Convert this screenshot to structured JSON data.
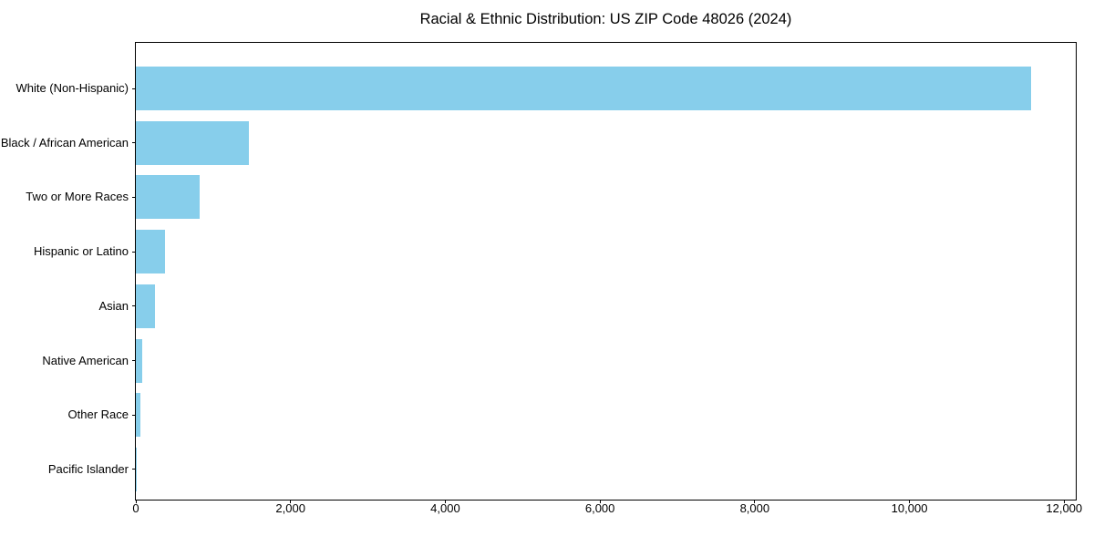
{
  "chart_data": {
    "type": "bar",
    "orientation": "horizontal",
    "title": "Racial & Ethnic Distribution: US ZIP Code 48026 (2024)",
    "xlabel": "",
    "ylabel": "",
    "categories": [
      "White (Non-Hispanic)",
      "Black / African American",
      "Two or More Races",
      "Hispanic or Latino",
      "Asian",
      "Native American",
      "Other Race",
      "Pacific Islander"
    ],
    "values": [
      11575,
      1465,
      820,
      380,
      245,
      80,
      55,
      5
    ],
    "bar_color": "#87CEEB",
    "xlim": [
      0,
      12150
    ],
    "x_ticks": [
      0,
      2000,
      4000,
      6000,
      8000,
      10000,
      12000
    ],
    "x_tick_labels": [
      "0",
      "2,000",
      "4,000",
      "6,000",
      "8,000",
      "10,000",
      "12,000"
    ],
    "grid": false,
    "legend": false
  }
}
